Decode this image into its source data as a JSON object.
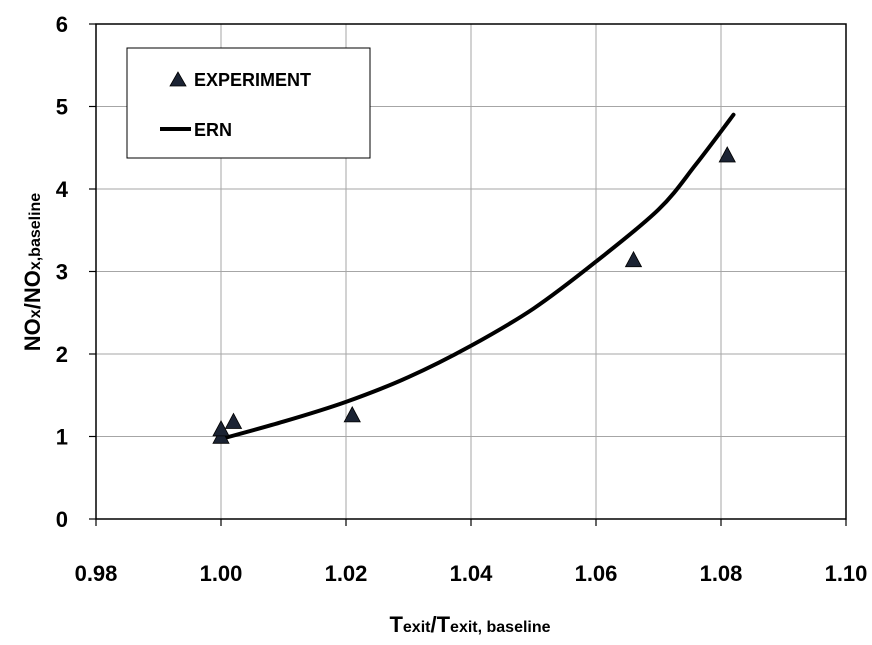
{
  "chart_data": {
    "type": "scatter",
    "title": "",
    "xlabel": {
      "main": "T",
      "small": "exit",
      "main2": "/T",
      "small2": "exit, baseline"
    },
    "ylabel": {
      "main": "NO",
      "small": "x",
      "main2": "/NO",
      "small2": "x,baseline"
    },
    "xlim": [
      0.98,
      1.1
    ],
    "ylim": [
      0,
      6
    ],
    "x_ticks": [
      "0.98",
      "1.00",
      "1.02",
      "1.04",
      "1.06",
      "1.08",
      "1.10"
    ],
    "y_ticks": [
      "0",
      "1",
      "2",
      "3",
      "4",
      "5",
      "6"
    ],
    "grid": true,
    "legend_position": "top-left",
    "series": [
      {
        "name": "EXPERIMENT",
        "marker": "triangle",
        "color": "#1b2333",
        "points": [
          {
            "x": 1.0,
            "y": 0.99
          },
          {
            "x": 1.0,
            "y": 1.08
          },
          {
            "x": 1.002,
            "y": 1.17
          },
          {
            "x": 1.021,
            "y": 1.25
          },
          {
            "x": 1.066,
            "y": 3.13
          },
          {
            "x": 1.081,
            "y": 4.4
          }
        ]
      },
      {
        "name": "ERN",
        "marker": "line",
        "color": "#000000",
        "points": [
          {
            "x": 1.0,
            "y": 0.97
          },
          {
            "x": 1.01,
            "y": 1.18
          },
          {
            "x": 1.02,
            "y": 1.42
          },
          {
            "x": 1.03,
            "y": 1.72
          },
          {
            "x": 1.04,
            "y": 2.1
          },
          {
            "x": 1.05,
            "y": 2.55
          },
          {
            "x": 1.06,
            "y": 3.12
          },
          {
            "x": 1.07,
            "y": 3.75
          },
          {
            "x": 1.076,
            "y": 4.3
          },
          {
            "x": 1.082,
            "y": 4.9
          }
        ]
      }
    ]
  }
}
